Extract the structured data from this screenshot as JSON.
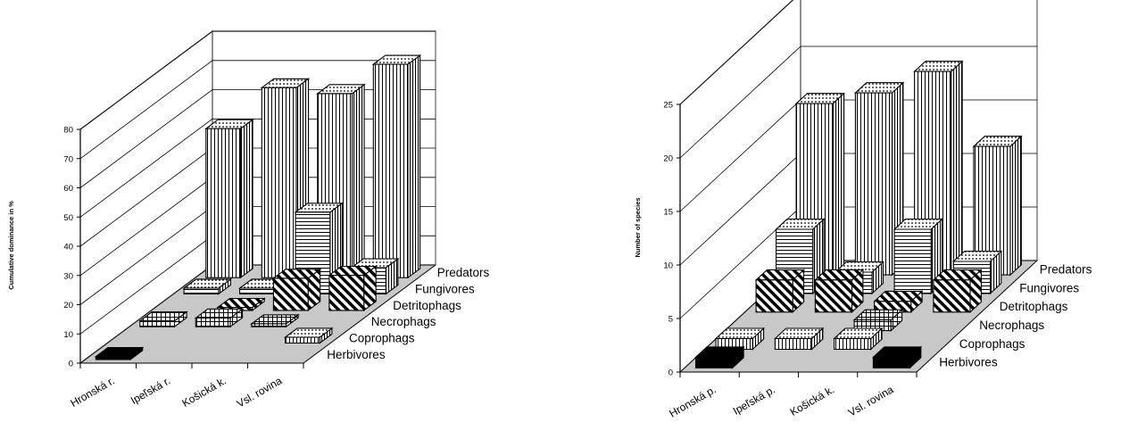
{
  "colors": {
    "floor": "#c8c8c8",
    "background": "#ffffff",
    "grid": "#000000",
    "frame": "#808080",
    "herbivores": "#000000"
  },
  "chart_data": [
    {
      "type": "bar",
      "subtype": "3d-column",
      "title": "",
      "ylabel": "Cumulative dominance in %",
      "ylim": [
        0,
        80
      ],
      "yticks": [
        0,
        10,
        20,
        30,
        40,
        50,
        60,
        70,
        80
      ],
      "grid": true,
      "categories": [
        "Hronská r.",
        "Ipeľská r.",
        "Košická k.",
        "Vsl. rovina"
      ],
      "series": [
        {
          "name": "Herbivores",
          "values": [
            1,
            0,
            0,
            0
          ]
        },
        {
          "name": "Coprophags",
          "values": [
            0,
            0,
            0,
            2
          ]
        },
        {
          "name": "Necrophags",
          "values": [
            2,
            3,
            1,
            0
          ]
        },
        {
          "name": "Detritophags",
          "values": [
            0,
            1,
            11,
            12
          ]
        },
        {
          "name": "Fungivores",
          "values": [
            2,
            2,
            28,
            9
          ]
        },
        {
          "name": "Predators",
          "values": [
            51,
            65,
            63,
            73
          ]
        }
      ]
    },
    {
      "type": "bar",
      "subtype": "3d-column",
      "title": "",
      "ylabel": "Number of species",
      "ylim": [
        0,
        25
      ],
      "yticks": [
        0,
        5,
        10,
        15,
        20,
        25
      ],
      "grid": true,
      "categories": [
        "Hronská p.",
        "Ipeľská p.",
        "Košická k.",
        "Vsl. rovina"
      ],
      "series": [
        {
          "name": "Herbivores",
          "values": [
            1,
            0,
            0,
            1
          ]
        },
        {
          "name": "Coprophags",
          "values": [
            1,
            1,
            1,
            0
          ]
        },
        {
          "name": "Necrophags",
          "values": [
            0,
            0,
            1,
            0
          ]
        },
        {
          "name": "Detritophags",
          "values": [
            3,
            3,
            1,
            3
          ]
        },
        {
          "name": "Fungivores",
          "values": [
            6,
            2,
            6,
            3
          ]
        },
        {
          "name": "Predators",
          "values": [
            16,
            17,
            19,
            12
          ]
        }
      ]
    }
  ]
}
